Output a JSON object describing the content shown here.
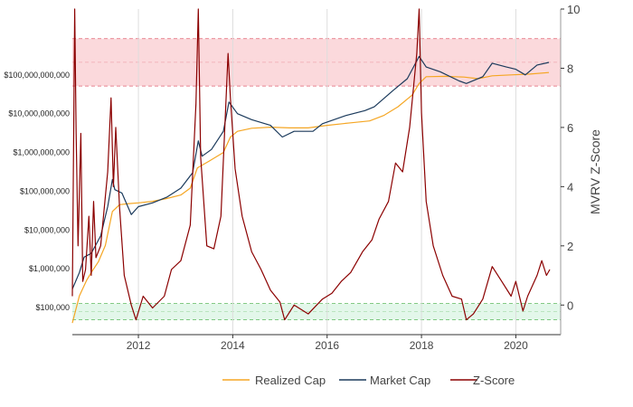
{
  "chart_data": {
    "type": "line",
    "title": "",
    "xlabel": "",
    "ylabel_left": "",
    "ylabel_right": "MVRV Z-Score",
    "x_ticks": [
      "2012",
      "2014",
      "2016",
      "2018",
      "2020"
    ],
    "x_range": [
      2010.6,
      2020.95
    ],
    "y_left_scale": "log",
    "y_left_range": [
      20000,
      5000000000000
    ],
    "y_left_ticks": [
      {
        "value": 100000,
        "label": "$100,000"
      },
      {
        "value": 1000000,
        "label": "$1,000,000"
      },
      {
        "value": 10000000,
        "label": "$10,000,000"
      },
      {
        "value": 100000000,
        "label": "$100,000,000"
      },
      {
        "value": 1000000000,
        "label": "$1,000,000,000"
      },
      {
        "value": 10000000000,
        "label": "$10,000,000,000"
      },
      {
        "value": 100000000000,
        "label": "$100,000,000,000"
      }
    ],
    "y_right_range": [
      -1,
      10
    ],
    "y_right_ticks": [
      "0",
      "2",
      "4",
      "6",
      "8",
      "10"
    ],
    "grid": "vertical",
    "legend_position": "bottom",
    "bands": [
      {
        "zone": "upper",
        "z_from": 7.4,
        "z_to": 9.0,
        "color": "#fbd9dc",
        "border": "#e06070"
      },
      {
        "zone": "lower",
        "z_from": -0.5,
        "z_to": 0.05,
        "color": "#e3f7ea",
        "border": "#5cb85c"
      }
    ],
    "series": [
      {
        "name": "Realized Cap",
        "axis": "left",
        "color": "#f5a623",
        "points": [
          [
            2010.6,
            40000
          ],
          [
            2010.75,
            200000
          ],
          [
            2010.9,
            500000
          ],
          [
            2011.0,
            800000
          ],
          [
            2011.15,
            1500000
          ],
          [
            2011.3,
            4000000
          ],
          [
            2011.45,
            30000000
          ],
          [
            2011.6,
            45000000
          ],
          [
            2011.8,
            48000000
          ],
          [
            2012.0,
            50000000
          ],
          [
            2012.3,
            55000000
          ],
          [
            2012.6,
            65000000
          ],
          [
            2012.9,
            80000000
          ],
          [
            2013.1,
            120000000
          ],
          [
            2013.25,
            400000000
          ],
          [
            2013.5,
            600000000
          ],
          [
            2013.8,
            1000000000
          ],
          [
            2013.95,
            2500000000
          ],
          [
            2014.1,
            3500000000
          ],
          [
            2014.4,
            4200000000
          ],
          [
            2014.8,
            4500000000
          ],
          [
            2015.2,
            4300000000
          ],
          [
            2015.6,
            4300000000
          ],
          [
            2016.0,
            5000000000
          ],
          [
            2016.5,
            5800000000
          ],
          [
            2016.9,
            6500000000
          ],
          [
            2017.2,
            9000000000
          ],
          [
            2017.5,
            15000000000
          ],
          [
            2017.8,
            30000000000
          ],
          [
            2017.95,
            60000000000
          ],
          [
            2018.1,
            90000000000
          ],
          [
            2018.5,
            92000000000
          ],
          [
            2018.9,
            88000000000
          ],
          [
            2019.2,
            80000000000
          ],
          [
            2019.5,
            95000000000
          ],
          [
            2019.9,
            100000000000
          ],
          [
            2020.3,
            105000000000
          ],
          [
            2020.7,
            115000000000
          ]
        ]
      },
      {
        "name": "Market Cap",
        "axis": "left",
        "color": "#1b3a5c",
        "points": [
          [
            2010.6,
            300000
          ],
          [
            2010.75,
            800000
          ],
          [
            2010.85,
            2000000
          ],
          [
            2011.0,
            2500000
          ],
          [
            2011.2,
            7000000
          ],
          [
            2011.35,
            40000000
          ],
          [
            2011.45,
            200000000
          ],
          [
            2011.5,
            110000000
          ],
          [
            2011.65,
            90000000
          ],
          [
            2011.85,
            25000000
          ],
          [
            2012.0,
            40000000
          ],
          [
            2012.3,
            50000000
          ],
          [
            2012.6,
            70000000
          ],
          [
            2012.9,
            120000000
          ],
          [
            2013.15,
            300000000
          ],
          [
            2013.27,
            2000000000
          ],
          [
            2013.35,
            800000000
          ],
          [
            2013.55,
            1200000000
          ],
          [
            2013.8,
            3500000000
          ],
          [
            2013.92,
            20000000000
          ],
          [
            2014.1,
            10000000000
          ],
          [
            2014.4,
            7000000000
          ],
          [
            2014.8,
            5000000000
          ],
          [
            2015.05,
            2500000000
          ],
          [
            2015.3,
            3500000000
          ],
          [
            2015.7,
            3500000000
          ],
          [
            2015.9,
            5500000000
          ],
          [
            2016.4,
            9000000000
          ],
          [
            2016.8,
            12000000000
          ],
          [
            2017.0,
            15000000000
          ],
          [
            2017.4,
            40000000000
          ],
          [
            2017.7,
            80000000000
          ],
          [
            2017.95,
            300000000000
          ],
          [
            2018.1,
            160000000000
          ],
          [
            2018.4,
            120000000000
          ],
          [
            2018.8,
            70000000000
          ],
          [
            2018.95,
            60000000000
          ],
          [
            2019.3,
            90000000000
          ],
          [
            2019.5,
            200000000000
          ],
          [
            2019.8,
            160000000000
          ],
          [
            2020.0,
            140000000000
          ],
          [
            2020.2,
            100000000000
          ],
          [
            2020.45,
            180000000000
          ],
          [
            2020.7,
            210000000000
          ]
        ]
      },
      {
        "name": "Z-Score",
        "axis": "right",
        "color": "#8b0000",
        "points": [
          [
            2010.6,
            0.3
          ],
          [
            2010.65,
            10.0
          ],
          [
            2010.68,
            5.8
          ],
          [
            2010.72,
            2.0
          ],
          [
            2010.78,
            5.8
          ],
          [
            2010.82,
            0.8
          ],
          [
            2010.88,
            1.2
          ],
          [
            2010.95,
            3.0
          ],
          [
            2011.0,
            1.0
          ],
          [
            2011.05,
            3.5
          ],
          [
            2011.1,
            1.6
          ],
          [
            2011.2,
            2.0
          ],
          [
            2011.35,
            4.5
          ],
          [
            2011.42,
            7.0
          ],
          [
            2011.47,
            4.0
          ],
          [
            2011.52,
            6.0
          ],
          [
            2011.6,
            3.3
          ],
          [
            2011.7,
            1.0
          ],
          [
            2011.85,
            0.0
          ],
          [
            2011.95,
            -0.5
          ],
          [
            2012.1,
            0.3
          ],
          [
            2012.3,
            -0.1
          ],
          [
            2012.55,
            0.3
          ],
          [
            2012.7,
            1.2
          ],
          [
            2012.9,
            1.5
          ],
          [
            2013.1,
            2.7
          ],
          [
            2013.22,
            6.8
          ],
          [
            2013.27,
            10.0
          ],
          [
            2013.32,
            5.0
          ],
          [
            2013.45,
            2.0
          ],
          [
            2013.6,
            1.9
          ],
          [
            2013.75,
            3.0
          ],
          [
            2013.9,
            8.5
          ],
          [
            2013.95,
            7.0
          ],
          [
            2014.05,
            4.6
          ],
          [
            2014.2,
            3.0
          ],
          [
            2014.4,
            1.8
          ],
          [
            2014.6,
            1.2
          ],
          [
            2014.8,
            0.5
          ],
          [
            2015.0,
            0.1
          ],
          [
            2015.1,
            -0.5
          ],
          [
            2015.3,
            0.0
          ],
          [
            2015.6,
            -0.3
          ],
          [
            2015.9,
            0.2
          ],
          [
            2016.1,
            0.4
          ],
          [
            2016.3,
            0.8
          ],
          [
            2016.5,
            1.1
          ],
          [
            2016.75,
            1.8
          ],
          [
            2016.95,
            2.2
          ],
          [
            2017.1,
            2.9
          ],
          [
            2017.3,
            3.5
          ],
          [
            2017.45,
            4.8
          ],
          [
            2017.6,
            4.5
          ],
          [
            2017.75,
            6.0
          ],
          [
            2017.9,
            8.5
          ],
          [
            2017.95,
            10.0
          ],
          [
            2018.0,
            6.5
          ],
          [
            2018.1,
            3.5
          ],
          [
            2018.25,
            2.0
          ],
          [
            2018.45,
            1.0
          ],
          [
            2018.65,
            0.3
          ],
          [
            2018.85,
            0.2
          ],
          [
            2018.95,
            -0.5
          ],
          [
            2019.1,
            -0.3
          ],
          [
            2019.3,
            0.2
          ],
          [
            2019.5,
            1.3
          ],
          [
            2019.7,
            0.8
          ],
          [
            2019.9,
            0.3
          ],
          [
            2020.0,
            0.8
          ],
          [
            2020.15,
            -0.2
          ],
          [
            2020.25,
            0.3
          ],
          [
            2020.45,
            1.0
          ],
          [
            2020.55,
            1.5
          ],
          [
            2020.65,
            1.0
          ],
          [
            2020.72,
            1.2
          ]
        ]
      }
    ]
  }
}
